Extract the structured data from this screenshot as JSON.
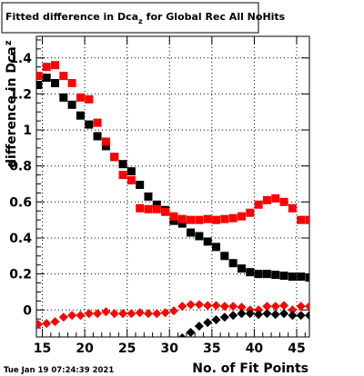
{
  "chart_data": {
    "type": "scatter",
    "title": "Fitted difference in Dca",
    "title_subscript": "z",
    "title_suffix": "for Global Rec All NoHits",
    "xlabel": "No. of Fit Points",
    "ylabel": "difference in Dca",
    "ylabel_subscript": "z",
    "xlim": [
      14.3,
      46.5
    ],
    "ylim": [
      -0.15,
      1.52
    ],
    "x_ticks": [
      15,
      20,
      25,
      30,
      35,
      40,
      45
    ],
    "y_ticks": [
      0,
      0.2,
      0.4,
      0.6,
      0.8,
      1,
      1.2,
      1.4
    ],
    "y_tick_labels": [
      "0",
      "0.2",
      "0.4",
      "0.6",
      "0.8",
      "1",
      "1.2",
      "1.4"
    ],
    "grid": true,
    "series": [
      {
        "marker": "square",
        "color": "#000000",
        "x": [
          14.5,
          15.5,
          16.5,
          17.5,
          18.5,
          19.5,
          20.5,
          21.5,
          22.5,
          23.5,
          24.5,
          25.5,
          26.5,
          27.5,
          28.5,
          29.5,
          30.5,
          31.5,
          32.5,
          33.5,
          34.5,
          35.5,
          36.5,
          37.5,
          38.5,
          39.5,
          40.5,
          41.5,
          42.5,
          43.5,
          44.5,
          45.5,
          46.5
        ],
        "y": [
          1.25,
          1.29,
          1.26,
          1.18,
          1.14,
          1.08,
          1.03,
          0.965,
          0.91,
          0.85,
          0.81,
          0.77,
          0.695,
          0.63,
          0.585,
          0.555,
          0.495,
          0.48,
          0.43,
          0.41,
          0.38,
          0.35,
          0.3,
          0.26,
          0.23,
          0.21,
          0.2,
          0.2,
          0.195,
          0.19,
          0.185,
          0.185,
          0.18
        ]
      },
      {
        "marker": "square",
        "color": "#ff0000",
        "x": [
          14.5,
          15.5,
          16.5,
          17.5,
          18.5,
          19.5,
          20.5,
          21.5,
          22.5,
          23.5,
          24.5,
          25.5,
          26.5,
          27.5,
          28.5,
          29.5,
          30.5,
          31.5,
          32.5,
          33.5,
          34.5,
          35.5,
          36.5,
          37.5,
          38.5,
          39.5,
          40.5,
          41.5,
          42.5,
          43.5,
          44.5,
          45.5,
          46.5
        ],
        "y": [
          1.3,
          1.35,
          1.36,
          1.3,
          1.26,
          1.18,
          1.17,
          1.04,
          0.935,
          0.85,
          0.75,
          0.72,
          0.565,
          0.56,
          0.56,
          0.545,
          0.52,
          0.505,
          0.5,
          0.5,
          0.505,
          0.5,
          0.505,
          0.51,
          0.52,
          0.54,
          0.585,
          0.61,
          0.62,
          0.6,
          0.565,
          0.5,
          0.5
        ]
      },
      {
        "marker": "diamond",
        "color": "#ff0000",
        "x": [
          14.5,
          15.5,
          16.5,
          17.5,
          18.5,
          19.5,
          20.5,
          21.5,
          22.5,
          23.5,
          24.5,
          25.5,
          26.5,
          27.5,
          28.5,
          29.5,
          30.5,
          31.5,
          32.5,
          33.5,
          34.5,
          35.5,
          36.5,
          37.5,
          38.5,
          39.5,
          40.5,
          41.5,
          42.5,
          43.5,
          44.5,
          45.5,
          46.5
        ],
        "y": [
          -0.08,
          -0.075,
          -0.065,
          -0.04,
          -0.03,
          -0.03,
          -0.02,
          -0.02,
          -0.01,
          -0.02,
          -0.02,
          -0.02,
          -0.015,
          -0.02,
          -0.02,
          -0.015,
          -0.005,
          0.02,
          0.03,
          0.03,
          0.025,
          0.025,
          0.02,
          0.02,
          0.015,
          0.0,
          0.0,
          0.02,
          0.02,
          0.025,
          0.0,
          0.02,
          0.02
        ]
      },
      {
        "marker": "diamond",
        "color": "#000000",
        "x": [
          30.5,
          31.5,
          32.5,
          33.5,
          34.5,
          35.5,
          36.5,
          37.5,
          38.5,
          39.5,
          40.5,
          41.5,
          42.5,
          43.5,
          44.5,
          45.5,
          46.5
        ],
        "y": [
          -0.19,
          -0.155,
          -0.125,
          -0.09,
          -0.07,
          -0.055,
          -0.04,
          -0.03,
          -0.02,
          -0.02,
          -0.025,
          -0.02,
          -0.025,
          -0.02,
          -0.03,
          -0.03,
          -0.03
        ]
      }
    ]
  },
  "timestamp": "Tue Jan 19 07:24:39 2021"
}
